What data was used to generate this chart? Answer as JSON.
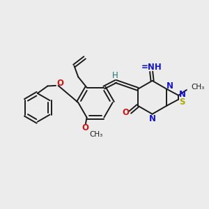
{
  "bg_color": "#ececec",
  "bond_color": "#1a1a1a",
  "n_color": "#1515cc",
  "o_color": "#cc1515",
  "s_color": "#aaaa00",
  "h_color": "#207070",
  "lw": 1.4,
  "fig_size": 3.0,
  "dpi": 100,
  "xlim": [
    0,
    10
  ],
  "ylim": [
    0,
    10
  ]
}
